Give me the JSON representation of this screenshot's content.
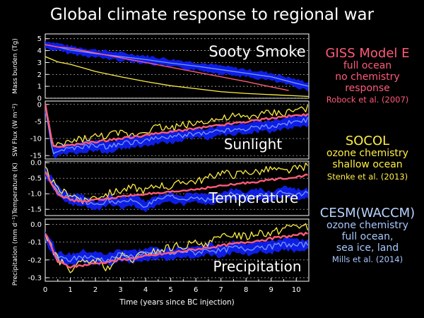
{
  "title": "Global climate response to regional war",
  "xlabel": "Time (years since BC injection)",
  "legend": {
    "giss": {
      "name": "GISS Model E",
      "lines": [
        "full ocean",
        "no chemistry",
        "response"
      ],
      "cite": "Robock et al. (2007)"
    },
    "socol": {
      "name": "SOCOL",
      "lines": [
        "ozone chemistry",
        "shallow ocean"
      ],
      "cite": "Stenke et al. (2013)"
    },
    "cesm": {
      "name": "CESM(WACCM)",
      "lines": [
        "ozone chemistry",
        "full ocean,",
        "sea ice, land"
      ],
      "cite": "Mills et al. (2014)"
    }
  },
  "colors": {
    "giss": "#ff5b79",
    "socol": "#ffee44",
    "cesm": "#7799ff",
    "cesm_ens": "#0f1ff0",
    "panel_text": "#ffffff",
    "axes": "#ffffff"
  },
  "chart_data": {
    "type": "line",
    "xlim": [
      0,
      10.5
    ],
    "x_ticks": [
      "0",
      "1",
      "2",
      "3",
      "4",
      "5",
      "6",
      "7",
      "8",
      "9",
      "10"
    ],
    "panels": [
      {
        "id": "smoke",
        "label": "Sooty Smoke",
        "ylabel": "Mass burden (Tg)",
        "ylim": [
          0,
          5.4
        ],
        "y_ticks": [
          "0",
          "1",
          "2",
          "3",
          "4",
          "5"
        ],
        "series": [
          {
            "model": "giss",
            "x": [
              0,
              0.5,
              1,
              2,
              3,
              4,
              5,
              6,
              7,
              8,
              9,
              9.7
            ],
            "y": [
              4.5,
              4.3,
              4.2,
              3.8,
              3.4,
              3.0,
              2.6,
              2.2,
              1.8,
              1.4,
              0.95,
              0.65
            ]
          },
          {
            "model": "cesm",
            "x": [
              0,
              0.5,
              1,
              2,
              3,
              4,
              5,
              6,
              7,
              8,
              9,
              10,
              10.5
            ],
            "y": [
              4.5,
              4.3,
              4.05,
              3.75,
              3.5,
              3.25,
              2.95,
              2.7,
              2.4,
              2.1,
              1.8,
              1.25,
              1.0
            ]
          },
          {
            "model": "socol",
            "x": [
              0,
              0.5,
              1,
              1.5,
              2,
              3,
              4,
              5,
              6,
              7,
              8,
              9,
              10,
              10.5
            ],
            "y": [
              3.5,
              3.05,
              2.85,
              2.55,
              2.25,
              1.8,
              1.4,
              1.05,
              0.8,
              0.55,
              0.4,
              0.3,
              0.2,
              0.15
            ]
          }
        ]
      },
      {
        "id": "sw",
        "label": "Sunlight",
        "ylabel": "SW Flux (W m⁻²)",
        "ylim": [
          -16,
          1
        ],
        "y_ticks": [
          "0",
          "-5",
          "-10",
          "-15"
        ],
        "series": [
          {
            "model": "socol",
            "x": [
              0,
              0.3,
              0.6,
              1,
              1.5,
              2,
              2.5,
              3,
              3.5,
              4,
              4.5,
              5,
              5.5,
              6,
              6.5,
              7,
              7.5,
              8,
              8.5,
              9,
              9.5,
              10,
              10.5
            ],
            "y": [
              0,
              -13,
              -12,
              -11,
              -10,
              -9.5,
              -9,
              -8.5,
              -9,
              -7.5,
              -6.5,
              -7,
              -6,
              -5.5,
              -4.5,
              -4.5,
              -3.5,
              -4,
              -3,
              -2.5,
              -2.5,
              -1.5,
              -1
            ]
          },
          {
            "model": "cesm",
            "x": [
              0,
              0.3,
              0.6,
              1,
              1.5,
              2,
              2.5,
              3,
              3.5,
              4,
              4.5,
              5,
              5.5,
              6,
              6.5,
              7,
              7.5,
              8,
              8.5,
              9,
              9.5,
              10,
              10.5
            ],
            "y": [
              -1,
              -14,
              -13.5,
              -13,
              -12.5,
              -12,
              -12.5,
              -11.5,
              -11,
              -10.5,
              -10,
              -9.5,
              -9,
              -8.5,
              -8.5,
              -7.5,
              -7.5,
              -7,
              -6.5,
              -6.5,
              -5.5,
              -5,
              -4.5
            ]
          },
          {
            "model": "giss",
            "x": [
              0,
              0.3,
              0.6,
              1,
              1.5,
              2,
              2.5,
              3,
              3.5,
              4,
              4.5,
              5,
              5.5,
              6,
              6.5,
              7,
              7.5,
              8,
              8.5,
              9,
              9.5,
              10,
              10.5
            ],
            "y": [
              0,
              -12,
              -12.5,
              -12,
              -11.5,
              -11,
              -10.5,
              -10,
              -9.5,
              -9,
              -8.5,
              -8,
              -7.5,
              -7,
              -6.5,
              -6,
              -5.5,
              -5,
              -4.5,
              -4,
              -3.5,
              -3.2,
              -3
            ]
          }
        ]
      },
      {
        "id": "temp",
        "label": "Temperature",
        "ylabel": "Temperature (K)",
        "ylim": [
          -1.7,
          0.05
        ],
        "y_ticks": [
          "0.0",
          "-0.5",
          "-1.0",
          "-1.5"
        ],
        "series": [
          {
            "model": "socol",
            "x": [
              0,
              0.5,
              1,
              1.5,
              2,
              2.5,
              3,
              3.5,
              4,
              4.5,
              5,
              5.5,
              6,
              6.5,
              7,
              7.5,
              8,
              8.5,
              9,
              9.5,
              10,
              10.5
            ],
            "y": [
              -0.2,
              -0.9,
              -1.0,
              -1.2,
              -1.1,
              -1.0,
              -0.9,
              -0.8,
              -0.9,
              -0.7,
              -0.8,
              -0.6,
              -0.6,
              -0.5,
              -0.3,
              -0.4,
              -0.3,
              -0.3,
              -0.2,
              -0.3,
              -0.2,
              -0.1
            ]
          },
          {
            "model": "cesm",
            "x": [
              0,
              0.5,
              1,
              1.5,
              2,
              2.5,
              3,
              3.5,
              4,
              4.5,
              5,
              5.5,
              6,
              6.5,
              7,
              7.5,
              8,
              8.5,
              9,
              9.5,
              10,
              10.5
            ],
            "y": [
              -0.3,
              -0.9,
              -1.2,
              -1.2,
              -1.4,
              -1.2,
              -1.3,
              -1.2,
              -1.4,
              -1.2,
              -1.1,
              -1.2,
              -1.1,
              -1.2,
              -1.1,
              -1.0,
              -1.1,
              -1.0,
              -1.1,
              -0.9,
              -1.0,
              -1.0
            ]
          },
          {
            "model": "giss",
            "x": [
              0,
              0.5,
              1,
              1.5,
              2,
              2.5,
              3,
              3.5,
              4,
              4.5,
              5,
              5.5,
              6,
              6.5,
              7,
              7.5,
              8,
              8.5,
              9,
              9.5,
              10,
              10.5
            ],
            "y": [
              -0.3,
              -1.0,
              -1.2,
              -1.25,
              -1.2,
              -1.15,
              -1.1,
              -1.05,
              -1.0,
              -1.0,
              -0.95,
              -0.9,
              -0.85,
              -0.8,
              -0.75,
              -0.7,
              -0.65,
              -0.6,
              -0.55,
              -0.5,
              -0.45,
              -0.4
            ]
          }
        ]
      },
      {
        "id": "precip",
        "label": "Precipitation",
        "ylabel": "Precipitation (mm d⁻¹)",
        "ylim": [
          -0.32,
          0.03
        ],
        "y_ticks": [
          "0.0",
          "-0.1",
          "-0.2",
          "-0.3"
        ],
        "series": [
          {
            "model": "socol",
            "x": [
              0,
              0.5,
              1,
              1.5,
              2,
              2.5,
              3,
              3.5,
              4,
              4.5,
              5,
              5.5,
              6,
              6.5,
              7,
              7.5,
              8,
              8.5,
              9,
              9.5,
              10,
              10.5
            ],
            "y": [
              -0.05,
              -0.2,
              -0.25,
              -0.22,
              -0.2,
              -0.25,
              -0.18,
              -0.2,
              -0.16,
              -0.15,
              -0.13,
              -0.12,
              -0.11,
              -0.1,
              -0.08,
              -0.05,
              -0.07,
              -0.04,
              -0.05,
              -0.02,
              0.0,
              -0.02
            ]
          },
          {
            "model": "cesm",
            "x": [
              0,
              0.5,
              1,
              1.5,
              2,
              2.5,
              3,
              3.5,
              4,
              4.5,
              5,
              5.5,
              6,
              6.5,
              7,
              7.5,
              8,
              8.5,
              9,
              9.5,
              10,
              10.5
            ],
            "y": [
              -0.06,
              -0.19,
              -0.2,
              -0.18,
              -0.19,
              -0.2,
              -0.17,
              -0.18,
              -0.17,
              -0.16,
              -0.17,
              -0.15,
              -0.16,
              -0.14,
              -0.15,
              -0.13,
              -0.14,
              -0.12,
              -0.13,
              -0.11,
              -0.12,
              -0.11
            ]
          },
          {
            "model": "giss",
            "x": [
              0,
              0.5,
              1,
              1.5,
              2,
              2.5,
              3,
              3.5,
              4,
              4.5,
              5,
              5.5,
              6,
              6.5,
              7,
              7.5,
              8,
              8.5,
              9,
              9.5,
              10,
              10.5
            ],
            "y": [
              -0.05,
              -0.21,
              -0.24,
              -0.23,
              -0.22,
              -0.21,
              -0.2,
              -0.19,
              -0.18,
              -0.17,
              -0.16,
              -0.15,
              -0.14,
              -0.13,
              -0.12,
              -0.11,
              -0.1,
              -0.09,
              -0.08,
              -0.07,
              -0.06,
              -0.05
            ]
          }
        ]
      }
    ]
  }
}
